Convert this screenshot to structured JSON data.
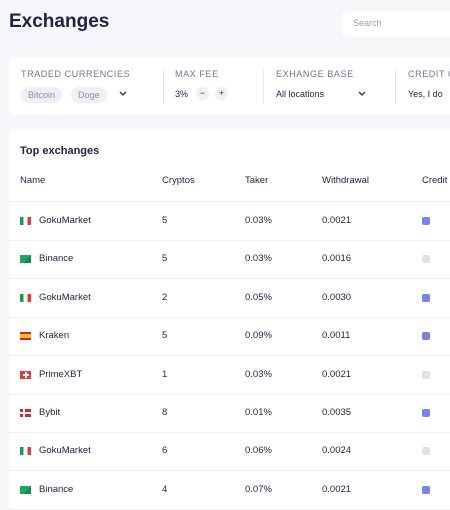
{
  "header": {
    "title": "Exchanges",
    "search_placeholder": "Search"
  },
  "filters": [
    {
      "label": "TRADED CURRENCIES",
      "chips": [
        "Bitcoin",
        "Doge"
      ]
    },
    {
      "label": "MAX FEE",
      "value": "3%",
      "decrement": "−",
      "increment": "+"
    },
    {
      "label": "EXHANGE BASE",
      "value": "All locations"
    },
    {
      "label": "CREDIT C",
      "value": "Yes, I do"
    }
  ],
  "table": {
    "title": "Top exchanges",
    "columns": [
      "Name",
      "Cryptos",
      "Taker",
      "Withdrawal",
      "Credit"
    ],
    "rows": [
      {
        "name": "GokuMarket",
        "cryptos": "5",
        "taker": "0.03%",
        "withdrawal": "0.0021",
        "credit": true
      },
      {
        "name": "Binance",
        "cryptos": "5",
        "taker": "0.03%",
        "withdrawal": "0.0016",
        "credit": false
      },
      {
        "name": "GokuMarket",
        "cryptos": "2",
        "taker": "0.05%",
        "withdrawal": "0.0030",
        "credit": true
      },
      {
        "name": "Kraken",
        "cryptos": "5",
        "taker": "0.09%",
        "withdrawal": "0.0011",
        "credit": true
      },
      {
        "name": "PrimeXBT",
        "cryptos": "1",
        "taker": "0.03%",
        "withdrawal": "0.0021",
        "credit": false
      },
      {
        "name": "Bybit",
        "cryptos": "8",
        "taker": "0.01%",
        "withdrawal": "0.0035",
        "credit": true
      },
      {
        "name": "GokuMarket",
        "cryptos": "6",
        "taker": "0.06%",
        "withdrawal": "0.0024",
        "credit": false
      },
      {
        "name": "Binance",
        "cryptos": "4",
        "taker": "0.07%",
        "withdrawal": "0.0021",
        "credit": true
      }
    ]
  }
}
